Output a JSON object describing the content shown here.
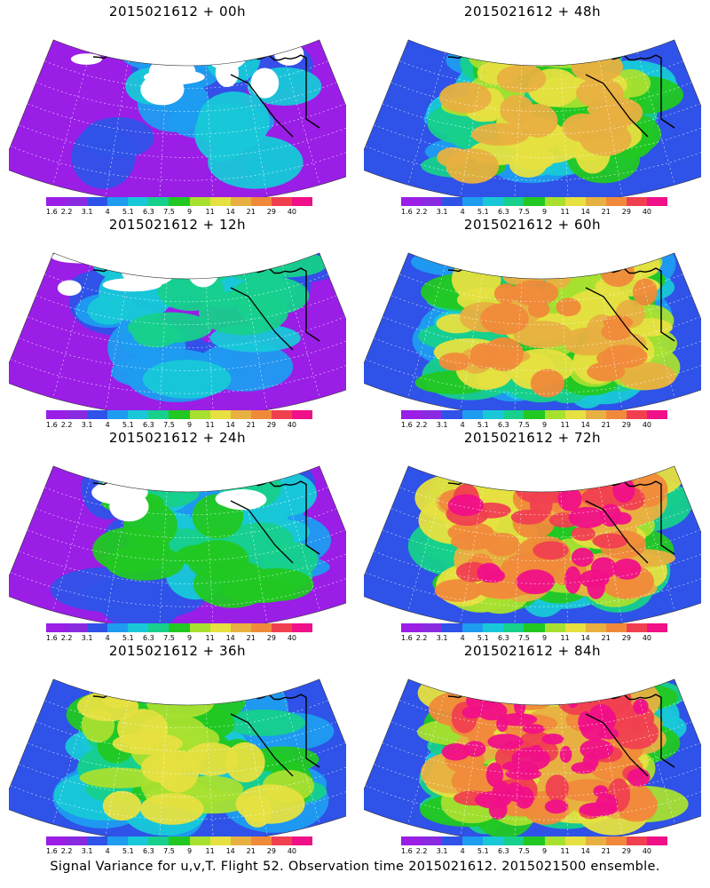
{
  "panels": [
    {
      "title": "2015021612 + 00h",
      "level": 0
    },
    {
      "title": "2015021612 + 48h",
      "level": 4
    },
    {
      "title": "2015021612 + 12h",
      "level": 1
    },
    {
      "title": "2015021612 + 60h",
      "level": 5
    },
    {
      "title": "2015021612 + 24h",
      "level": 2
    },
    {
      "title": "2015021612 + 72h",
      "level": 6
    },
    {
      "title": "2015021612 + 36h",
      "level": 3
    },
    {
      "title": "2015021612 + 84h",
      "level": 7
    }
  ],
  "colorbar": {
    "labels": [
      "1.6",
      "2.2",
      "3.1",
      "4",
      "5.1",
      "6.3",
      "7.5",
      "9",
      "11",
      "14",
      "21",
      "29",
      "40"
    ],
    "colors": [
      "#9a1ee6",
      "#8a2ae0",
      "#2f52e8",
      "#1e9cf0",
      "#18c8d8",
      "#16d08c",
      "#22c822",
      "#a8e030",
      "#e6e040",
      "#e8b040",
      "#f08a3a",
      "#f04050",
      "#f01088"
    ]
  },
  "footer": "Signal Variance for u,v,T. Flight 52. Observation time 2015021612. 2015021500 ensemble."
}
